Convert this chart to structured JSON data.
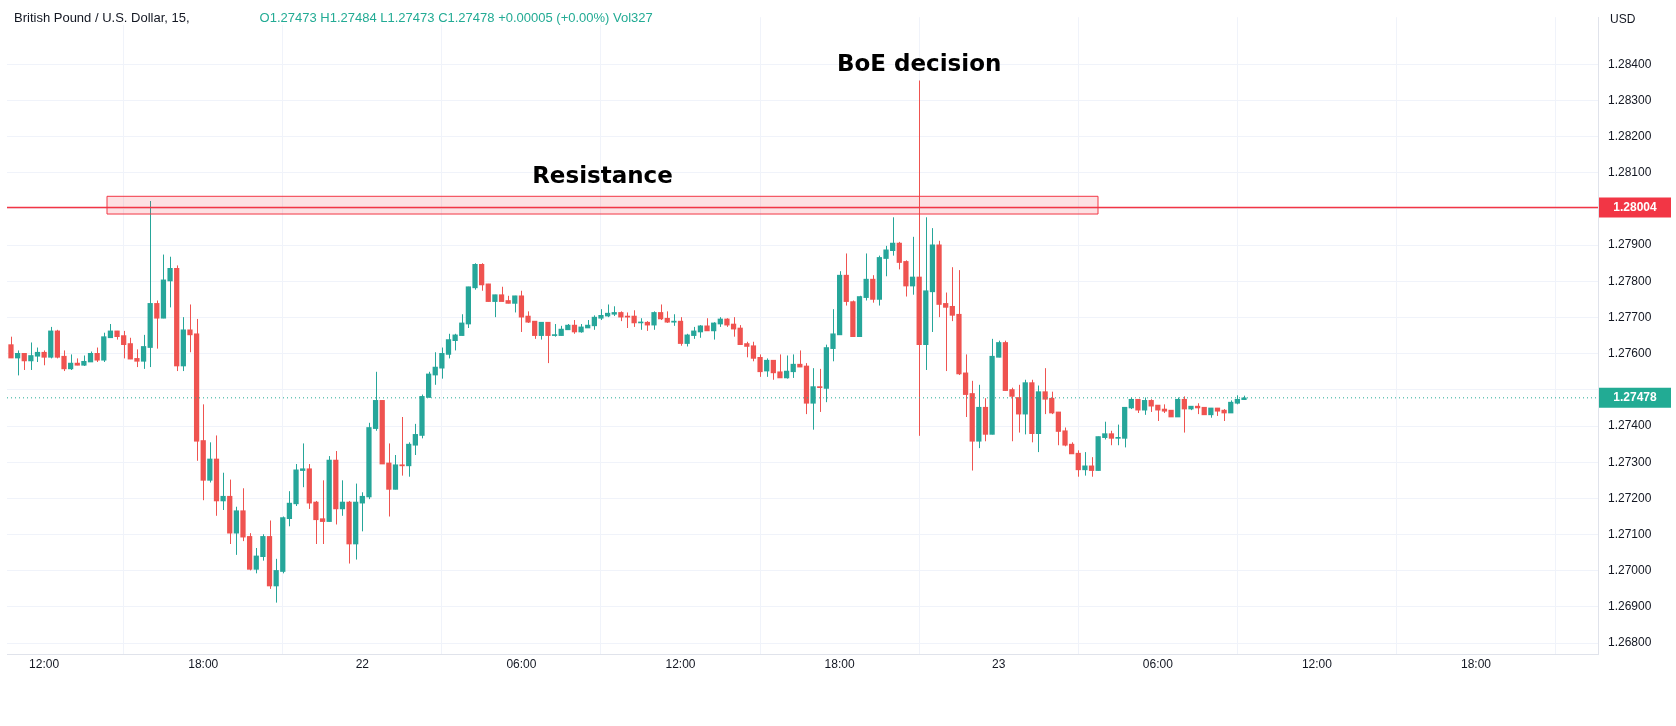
{
  "chart_data": {
    "type": "candlestick",
    "title": "British Pound / U.S. Dollar, 15,",
    "subtitle": "O1.27473  H1.27484  L1.27473  C1.27478  +0.00005 (+0.00%)  Vol327",
    "ylabel": "USD",
    "x": [
      "--06-21T10:45",
      "--06-21T11:00",
      "--06-21T11:15",
      "--06-21T11:30",
      "--06-21T11:45",
      "--06-21T12:00",
      "--06-21T12:15",
      "--06-21T12:30",
      "--06-21T12:45",
      "--06-21T13:00",
      "--06-21T13:15",
      "--06-21T13:30",
      "--06-21T13:45",
      "--06-21T14:00",
      "--06-21T14:15",
      "--06-21T14:30",
      "--06-21T14:45",
      "--06-21T15:00",
      "--06-21T15:15",
      "--06-21T15:30",
      "--06-21T15:45",
      "--06-21T16:00",
      "--06-21T16:15",
      "--06-21T16:30",
      "--06-21T16:45",
      "--06-21T17:00",
      "--06-21T17:15",
      "--06-21T17:30",
      "--06-21T17:45",
      "--06-21T18:00",
      "--06-21T18:15",
      "--06-21T18:30",
      "--06-21T18:45",
      "--06-21T19:00",
      "--06-21T19:15",
      "--06-21T19:30",
      "--06-21T19:45",
      "--06-21T20:00",
      "--06-21T20:15",
      "--06-21T20:30",
      "--06-21T20:45",
      "--06-21T21:00",
      "--06-21T21:15",
      "--06-21T21:30",
      "--06-21T21:45",
      "--06-21T22:00",
      "--06-21T22:15",
      "--06-21T22:30",
      "--06-21T22:45",
      "--06-21T23:00",
      "--06-21T23:15",
      "--06-21T23:30",
      "--06-21T23:45",
      "--06-22T00:00",
      "--06-22T00:15",
      "--06-22T00:30",
      "--06-22T00:45",
      "--06-22T01:00",
      "--06-22T01:15",
      "--06-22T01:30",
      "--06-22T01:45",
      "--06-22T02:00",
      "--06-22T02:15",
      "--06-22T02:30",
      "--06-22T02:45",
      "--06-22T03:00",
      "--06-22T03:15",
      "--06-22T03:30",
      "--06-22T03:45",
      "--06-22T04:00",
      "--06-22T04:15",
      "--06-22T04:30",
      "--06-22T04:45",
      "--06-22T05:00",
      "--06-22T05:15",
      "--06-22T05:30",
      "--06-22T05:45",
      "--06-22T06:00",
      "--06-22T06:15",
      "--06-22T06:30",
      "--06-22T06:45",
      "--06-22T07:00",
      "--06-22T07:15",
      "--06-22T07:30",
      "--06-22T07:45",
      "--06-22T08:00",
      "--06-22T08:15",
      "--06-22T08:30",
      "--06-22T08:45",
      "--06-22T09:00",
      "--06-22T09:15",
      "--06-22T09:30",
      "--06-22T09:45",
      "--06-22T10:00",
      "--06-22T10:15",
      "--06-22T10:30",
      "--06-22T10:45",
      "--06-22T11:00",
      "--06-22T11:15",
      "--06-22T11:30",
      "--06-22T11:45",
      "--06-22T12:00",
      "--06-22T12:15",
      "--06-22T12:30",
      "--06-22T12:45",
      "--06-22T13:00",
      "--06-22T13:15",
      "--06-22T13:30",
      "--06-22T13:45",
      "--06-22T14:00",
      "--06-22T14:15",
      "--06-22T14:30",
      "--06-22T14:45",
      "--06-22T15:00",
      "--06-22T15:15",
      "--06-22T15:30",
      "--06-22T15:45",
      "--06-22T16:00",
      "--06-22T16:15",
      "--06-22T16:30",
      "--06-22T16:45",
      "--06-22T17:00",
      "--06-22T17:15",
      "--06-22T17:30",
      "--06-22T17:45",
      "--06-22T18:00",
      "--06-22T18:15",
      "--06-22T18:30",
      "--06-22T18:45",
      "--06-22T19:00",
      "--06-22T19:15",
      "--06-22T19:30",
      "--06-22T19:45",
      "--06-22T20:00",
      "--06-22T20:15",
      "--06-22T20:30",
      "--06-22T20:45",
      "--06-22T21:00",
      "--06-22T21:15",
      "--06-22T21:30",
      "--06-22T21:45",
      "--06-22T22:00",
      "--06-22T22:15",
      "--06-22T22:30",
      "--06-22T22:45",
      "--06-22T23:00",
      "--06-22T23:15",
      "--06-22T23:30",
      "--06-22T23:45",
      "--06-23T00:00",
      "--06-23T00:15",
      "--06-23T00:30",
      "--06-23T00:45",
      "--06-23T01:00",
      "--06-23T01:15",
      "--06-23T01:30",
      "--06-23T01:45",
      "--06-23T02:00",
      "--06-23T02:15",
      "--06-23T02:30",
      "--06-23T02:45",
      "--06-23T03:00",
      "--06-23T03:15",
      "--06-23T03:30",
      "--06-23T03:45",
      "--06-23T04:00",
      "--06-23T04:15",
      "--06-23T04:30",
      "--06-23T04:45",
      "--06-23T05:00",
      "--06-23T05:15",
      "--06-23T05:30",
      "--06-23T05:45",
      "--06-23T06:00",
      "--06-23T06:15",
      "--06-23T06:30",
      "--06-23T06:45",
      "--06-23T07:00",
      "--06-23T07:15",
      "--06-23T07:30",
      "--06-23T07:45",
      "--06-23T08:00",
      "--06-23T08:15",
      "--06-23T08:30",
      "--06-23T08:45",
      "--06-23T09:00",
      "--06-23T09:15"
    ],
    "ohlc": [
      [
        1.27625,
        1.27647,
        1.27588,
        1.27588
      ],
      [
        1.27588,
        1.27609,
        1.2754,
        1.27601
      ],
      [
        1.27601,
        1.27601,
        1.27555,
        1.2758
      ],
      [
        1.2758,
        1.27631,
        1.27555,
        1.27595
      ],
      [
        1.27593,
        1.27617,
        1.27577,
        1.27604
      ],
      [
        1.27604,
        1.27609,
        1.27568,
        1.2759
      ],
      [
        1.2759,
        1.27674,
        1.27587,
        1.27663
      ],
      [
        1.27663,
        1.27666,
        1.27587,
        1.2759
      ],
      [
        1.27593,
        1.27609,
        1.27552,
        1.27558
      ],
      [
        1.27558,
        1.27598,
        1.27555,
        1.27574
      ],
      [
        1.27574,
        1.27587,
        1.27568,
        1.27568
      ],
      [
        1.27568,
        1.27595,
        1.27566,
        1.27579
      ],
      [
        1.27577,
        1.27606,
        1.27577,
        1.27601
      ],
      [
        1.27601,
        1.27617,
        1.27577,
        1.27582
      ],
      [
        1.27582,
        1.27658,
        1.27577,
        1.27647
      ],
      [
        1.27644,
        1.27682,
        1.27644,
        1.27663
      ],
      [
        1.27663,
        1.27663,
        1.27639,
        1.27647
      ],
      [
        1.2765,
        1.27663,
        1.27587,
        1.27625
      ],
      [
        1.27628,
        1.27644,
        1.27585,
        1.27585
      ],
      [
        1.27587,
        1.27612,
        1.27563,
        1.27579
      ],
      [
        1.27579,
        1.27652,
        1.27558,
        1.2762
      ],
      [
        1.27617,
        1.28022,
        1.27563,
        1.27739
      ],
      [
        1.27739,
        1.27747,
        1.27614,
        1.27698
      ],
      [
        1.27698,
        1.27874,
        1.27698,
        1.27804
      ],
      [
        1.27801,
        1.27868,
        1.27728,
        1.27836
      ],
      [
        1.27836,
        1.27844,
        1.27552,
        1.27566
      ],
      [
        1.27566,
        1.27701,
        1.27552,
        1.27666
      ],
      [
        1.27666,
        1.27736,
        1.27604,
        1.27652
      ],
      [
        1.27655,
        1.27696,
        1.27304,
        1.27358
      ],
      [
        1.2736,
        1.2746,
        1.27195,
        1.2725
      ],
      [
        1.2725,
        1.27355,
        1.27244,
        1.27309
      ],
      [
        1.27309,
        1.27374,
        1.27152,
        1.27193
      ],
      [
        1.27193,
        1.27271,
        1.27168,
        1.27206
      ],
      [
        1.27206,
        1.27252,
        1.27074,
        1.27104
      ],
      [
        1.27104,
        1.27177,
        1.27044,
        1.27166
      ],
      [
        1.27166,
        1.27228,
        1.27082,
        1.27093
      ],
      [
        1.27095,
        1.27104,
        1.27001,
        1.27004
      ],
      [
        1.27004,
        1.27063,
        1.26993,
        1.27041
      ],
      [
        1.27039,
        1.27101,
        1.27028,
        1.27095
      ],
      [
        1.27095,
        1.27139,
        1.2695,
        1.26958
      ],
      [
        1.26958,
        1.27033,
        1.26912,
        1.27001
      ],
      [
        1.26998,
        1.2715,
        1.26993,
        1.27147
      ],
      [
        1.27144,
        1.2722,
        1.27123,
        1.27187
      ],
      [
        1.27185,
        1.27295,
        1.27179,
        1.27279
      ],
      [
        1.27277,
        1.27352,
        1.27231,
        1.27282
      ],
      [
        1.27282,
        1.27295,
        1.27171,
        1.27187
      ],
      [
        1.2719,
        1.27193,
        1.27074,
        1.27141
      ],
      [
        1.27144,
        1.2725,
        1.27074,
        1.27136
      ],
      [
        1.27136,
        1.27317,
        1.27136,
        1.27306
      ],
      [
        1.27306,
        1.27331,
        1.27128,
        1.27171
      ],
      [
        1.27171,
        1.2725,
        1.27152,
        1.2719
      ],
      [
        1.2719,
        1.27193,
        1.2702,
        1.27074
      ],
      [
        1.27074,
        1.27241,
        1.27031,
        1.2719
      ],
      [
        1.27187,
        1.27217,
        1.27109,
        1.27206
      ],
      [
        1.27204,
        1.27409,
        1.27198,
        1.27396
      ],
      [
        1.27393,
        1.2755,
        1.27387,
        1.27471
      ],
      [
        1.27471,
        1.27471,
        1.27295,
        1.27295
      ],
      [
        1.27298,
        1.27352,
        1.2715,
        1.27225
      ],
      [
        1.27225,
        1.2732,
        1.27225,
        1.27293
      ],
      [
        1.27293,
        1.27425,
        1.27263,
        1.2729
      ],
      [
        1.2729,
        1.27355,
        1.2726,
        1.2735
      ],
      [
        1.27347,
        1.27406,
        1.2732,
        1.27377
      ],
      [
        1.27374,
        1.27487,
        1.27366,
        1.27482
      ],
      [
        1.27479,
        1.2755,
        1.27479,
        1.27544
      ],
      [
        1.27541,
        1.27604,
        1.27514,
        1.27563
      ],
      [
        1.2756,
        1.27617,
        1.27531,
        1.27601
      ],
      [
        1.27598,
        1.27655,
        1.27587,
        1.27639
      ],
      [
        1.27636,
        1.27655,
        1.27609,
        1.27652
      ],
      [
        1.2765,
        1.27709,
        1.2765,
        1.27685
      ],
      [
        1.27682,
        1.27785,
        1.27671,
        1.27785
      ],
      [
        1.27782,
        1.2785,
        1.27777,
        1.27847
      ],
      [
        1.27847,
        1.2785,
        1.27774,
        1.2779
      ],
      [
        1.27793,
        1.27793,
        1.27744,
        1.27744
      ],
      [
        1.27744,
        1.27763,
        1.27701,
        1.27763
      ],
      [
        1.27763,
        1.27785,
        1.27744,
        1.27744
      ],
      [
        1.27747,
        1.2776,
        1.27739,
        1.27739
      ],
      [
        1.27739,
        1.2776,
        1.27714,
        1.2776
      ],
      [
        1.2776,
        1.27774,
        1.2766,
        1.27701
      ],
      [
        1.27704,
        1.27717,
        1.27685,
        1.27687
      ],
      [
        1.2769,
        1.2769,
        1.27641,
        1.2765
      ],
      [
        1.2765,
        1.27687,
        1.27639,
        1.27687
      ],
      [
        1.27687,
        1.27687,
        1.27574,
        1.2765
      ],
      [
        1.2765,
        1.27682,
        1.27647,
        1.27652
      ],
      [
        1.2765,
        1.27677,
        1.2765,
        1.27668
      ],
      [
        1.27666,
        1.27682,
        1.27666,
        1.27679
      ],
      [
        1.27679,
        1.27693,
        1.27655,
        1.2766
      ],
      [
        1.2766,
        1.27682,
        1.27658,
        1.27674
      ],
      [
        1.27671,
        1.27693,
        1.27671,
        1.27679
      ],
      [
        1.27677,
        1.27706,
        1.27666,
        1.27701
      ],
      [
        1.27698,
        1.27723,
        1.27693,
        1.27706
      ],
      [
        1.27704,
        1.27736,
        1.27701,
        1.27712
      ],
      [
        1.27709,
        1.27731,
        1.27704,
        1.27714
      ],
      [
        1.27714,
        1.27717,
        1.2769,
        1.27701
      ],
      [
        1.27704,
        1.27714,
        1.27671,
        1.27701
      ],
      [
        1.27704,
        1.2772,
        1.27674,
        1.27685
      ],
      [
        1.27685,
        1.27698,
        1.27666,
        1.27687
      ],
      [
        1.27687,
        1.2769,
        1.27663,
        1.27679
      ],
      [
        1.27679,
        1.27717,
        1.27666,
        1.27714
      ],
      [
        1.27714,
        1.27736,
        1.27693,
        1.27696
      ],
      [
        1.27698,
        1.27717,
        1.27685,
        1.27687
      ],
      [
        1.27687,
        1.27709,
        1.27677,
        1.2769
      ],
      [
        1.2769,
        1.27701,
        1.27622,
        1.27628
      ],
      [
        1.27628,
        1.27655,
        1.2762,
        1.27652
      ],
      [
        1.2765,
        1.27674,
        1.27641,
        1.27663
      ],
      [
        1.2766,
        1.27679,
        1.27644,
        1.27677
      ],
      [
        1.27677,
        1.27698,
        1.27663,
        1.27663
      ],
      [
        1.27663,
        1.27687,
        1.27639,
        1.27685
      ],
      [
        1.27682,
        1.27701,
        1.27674,
        1.27696
      ],
      [
        1.27696,
        1.27698,
        1.27674,
        1.27679
      ],
      [
        1.27682,
        1.27701,
        1.27647,
        1.27668
      ],
      [
        1.27671,
        1.27679,
        1.27625,
        1.27625
      ],
      [
        1.27628,
        1.27633,
        1.2759,
        1.2762
      ],
      [
        1.27622,
        1.27633,
        1.27579,
        1.27587
      ],
      [
        1.2759,
        1.27598,
        1.27536,
        1.2755
      ],
      [
        1.27552,
        1.27587,
        1.27536,
        1.27582
      ],
      [
        1.27582,
        1.27582,
        1.27528,
        1.27547
      ],
      [
        1.2755,
        1.27598,
        1.27533,
        1.27533
      ],
      [
        1.27533,
        1.27595,
        1.27531,
        1.27552
      ],
      [
        1.2755,
        1.27598,
        1.27533,
        1.27571
      ],
      [
        1.27571,
        1.27609,
        1.27563,
        1.27563
      ],
      [
        1.27566,
        1.27574,
        1.27433,
        1.27463
      ],
      [
        1.27463,
        1.2756,
        1.2739,
        1.27509
      ],
      [
        1.27509,
        1.27558,
        1.27439,
        1.27506
      ],
      [
        1.27504,
        1.27625,
        1.27466,
        1.27617
      ],
      [
        1.27614,
        1.27723,
        1.27579,
        1.27655
      ],
      [
        1.27652,
        1.27828,
        1.27652,
        1.27817
      ],
      [
        1.27817,
        1.27877,
        1.27733,
        1.27744
      ],
      [
        1.27744,
        1.27747,
        1.27647,
        1.27647
      ],
      [
        1.27647,
        1.2776,
        1.27647,
        1.27758
      ],
      [
        1.27755,
        1.27877,
        1.27747,
        1.27806
      ],
      [
        1.27806,
        1.27817,
        1.27741,
        1.2775
      ],
      [
        1.2775,
        1.27871,
        1.27733,
        1.27866
      ],
      [
        1.27863,
        1.27898,
        1.27814,
        1.27887
      ],
      [
        1.27885,
        1.27977,
        1.27871,
        1.27906
      ],
      [
        1.27906,
        1.27909,
        1.27833,
        1.27852
      ],
      [
        1.27855,
        1.27858,
        1.27758,
        1.27787
      ],
      [
        1.27787,
        1.27923,
        1.27763,
        1.27812
      ],
      [
        1.27812,
        1.28355,
        1.27373,
        1.27625
      ],
      [
        1.27625,
        1.27977,
        1.27555,
        1.27774
      ],
      [
        1.27771,
        1.27947,
        1.2766,
        1.27901
      ],
      [
        1.27901,
        1.27912,
        1.27701,
        1.27736
      ],
      [
        1.27739,
        1.27769,
        1.27552,
        1.27728
      ],
      [
        1.27731,
        1.27839,
        1.2769,
        1.27706
      ],
      [
        1.27709,
        1.27831,
        1.27541,
        1.27544
      ],
      [
        1.27547,
        1.27598,
        1.27425,
        1.27487
      ],
      [
        1.2749,
        1.27525,
        1.27277,
        1.27358
      ],
      [
        1.27358,
        1.27514,
        1.27339,
        1.27452
      ],
      [
        1.27452,
        1.27477,
        1.27358,
        1.27377
      ],
      [
        1.27377,
        1.27641,
        1.27377,
        1.27593
      ],
      [
        1.2759,
        1.27636,
        1.2759,
        1.27631
      ],
      [
        1.27631,
        1.27636,
        1.27498,
        1.27498
      ],
      [
        1.27501,
        1.27506,
        1.27358,
        1.27482
      ],
      [
        1.27479,
        1.27514,
        1.27382,
        1.27433
      ],
      [
        1.27433,
        1.27528,
        1.27377,
        1.2752
      ],
      [
        1.2752,
        1.27528,
        1.27355,
        1.27379
      ],
      [
        1.27379,
        1.27512,
        1.27328,
        1.27495
      ],
      [
        1.27495,
        1.2756,
        1.27433,
        1.27474
      ],
      [
        1.27477,
        1.27495,
        1.27433,
        1.27436
      ],
      [
        1.27439,
        1.27439,
        1.27347,
        1.27385
      ],
      [
        1.27387,
        1.27396,
        1.27344,
        1.27347
      ],
      [
        1.2735,
        1.27355,
        1.27323,
        1.27323
      ],
      [
        1.27325,
        1.27333,
        1.2726,
        1.27279
      ],
      [
        1.27279,
        1.27328,
        1.27263,
        1.2729
      ],
      [
        1.2729,
        1.27314,
        1.2726,
        1.27277
      ],
      [
        1.27277,
        1.27371,
        1.27277,
        1.27371
      ],
      [
        1.27368,
        1.27412,
        1.27363,
        1.27379
      ],
      [
        1.27379,
        1.27387,
        1.27347,
        1.27366
      ],
      [
        1.27366,
        1.27404,
        1.27347,
        1.27368
      ],
      [
        1.27366,
        1.27452,
        1.27341,
        1.27452
      ],
      [
        1.2745,
        1.27479,
        1.27447,
        1.27474
      ],
      [
        1.27474,
        1.27474,
        1.27436,
        1.27444
      ],
      [
        1.27444,
        1.27479,
        1.27431,
        1.27471
      ],
      [
        1.27471,
        1.27474,
        1.27439,
        1.27455
      ],
      [
        1.27458,
        1.27458,
        1.27414,
        1.27444
      ],
      [
        1.27447,
        1.2746,
        1.27436,
        1.27441
      ],
      [
        1.27444,
        1.27444,
        1.27425,
        1.27425
      ],
      [
        1.27425,
        1.27479,
        1.27425,
        1.27474
      ],
      [
        1.27474,
        1.27482,
        1.27382,
        1.27447
      ],
      [
        1.27447,
        1.27455,
        1.27444,
        1.27455
      ],
      [
        1.27455,
        1.27463,
        1.27433,
        1.2745
      ],
      [
        1.27452,
        1.27452,
        1.27431,
        1.27431
      ],
      [
        1.27431,
        1.2745,
        1.27423,
        1.2745
      ],
      [
        1.2745,
        1.2745,
        1.27428,
        1.27441
      ],
      [
        1.27444,
        1.27447,
        1.27414,
        1.27436
      ],
      [
        1.27436,
        1.27471,
        1.27436,
        1.27466
      ],
      [
        1.27463,
        1.27485,
        1.2746,
        1.27474
      ],
      [
        1.27473,
        1.27484,
        1.27473,
        1.27478
      ]
    ],
    "xlim": [
      "--06-21T10:36",
      "--06-23T22:36"
    ],
    "xticks": [
      {
        "value": "--06-21T12:00",
        "label": "12:00"
      },
      {
        "value": "--06-21T18:00",
        "label": "18:00"
      },
      {
        "value": "--06-22",
        "label": "22"
      },
      {
        "value": "--06-22T06:00",
        "label": "06:00"
      },
      {
        "value": "--06-22T12:00",
        "label": "12:00"
      },
      {
        "value": "--06-22T18:00",
        "label": "18:00"
      },
      {
        "value": "--06-23",
        "label": "23"
      },
      {
        "value": "--06-23T06:00",
        "label": "06:00"
      },
      {
        "value": "--06-23T12:00",
        "label": "12:00"
      },
      {
        "value": "--06-23T18:00",
        "label": "18:00"
      }
    ],
    "ylim": [
      1.2677,
      1.2853
    ],
    "yticks": [
      {
        "value": 1.268,
        "label": "1.26800"
      },
      {
        "value": 1.269,
        "label": "1.26900"
      },
      {
        "value": 1.27,
        "label": "1.27000"
      },
      {
        "value": 1.271,
        "label": "1.27100"
      },
      {
        "value": 1.272,
        "label": "1.27200"
      },
      {
        "value": 1.273,
        "label": "1.27300"
      },
      {
        "value": 1.274,
        "label": "1.27400"
      },
      {
        "value": 1.275,
        "label": null
      },
      {
        "value": 1.276,
        "label": "1.27600"
      },
      {
        "value": 1.277,
        "label": "1.27700"
      },
      {
        "value": 1.278,
        "label": "1.27800"
      },
      {
        "value": 1.279,
        "label": "1.27900"
      },
      {
        "value": 1.28,
        "label": null
      },
      {
        "value": 1.281,
        "label": "1.28100"
      },
      {
        "value": 1.282,
        "label": "1.28200"
      },
      {
        "value": 1.283,
        "label": "1.28300"
      },
      {
        "value": 1.284,
        "label": "1.28400"
      }
    ],
    "ref_lines": [
      {
        "axis": "y",
        "value": 1.28004,
        "label": "1.28004",
        "color": "#f23645",
        "line_style": "solid"
      },
      {
        "axis": "y",
        "value": 1.27478,
        "label": "1.27478",
        "color": "#22ab94",
        "line_style": "dotted"
      }
    ],
    "bands": [
      {
        "axis": "y",
        "from": 1.27986,
        "to": 1.28035,
        "label": "Resistance",
        "color": "#f23645"
      }
    ],
    "annotations": [
      {
        "text": "BoE decision",
        "x": "--06-22T21:00",
        "y": 1.28355
      }
    ],
    "grid": true,
    "legend": false
  }
}
